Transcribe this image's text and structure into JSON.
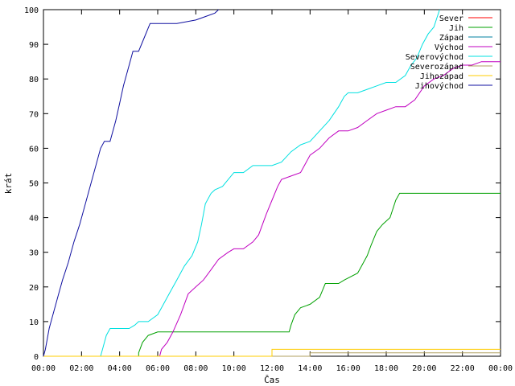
{
  "chart_data": {
    "type": "line",
    "xlabel": "Čas",
    "ylabel": "krát",
    "xlim": [
      0,
      24
    ],
    "ylim": [
      0,
      100
    ],
    "grid": false,
    "legend_position": "top-right",
    "x_ticks": [
      "00:00",
      "02:00",
      "04:00",
      "06:00",
      "08:00",
      "10:00",
      "12:00",
      "14:00",
      "16:00",
      "18:00",
      "20:00",
      "22:00",
      "00:00"
    ],
    "y_ticks": [
      "0",
      "10",
      "20",
      "30",
      "40",
      "50",
      "60",
      "70",
      "80",
      "90",
      "100"
    ],
    "series": [
      {
        "name": "Sever",
        "color": "#ff0000",
        "points": []
      },
      {
        "name": "Jih",
        "color": "#00a000",
        "points": [
          [
            0,
            0
          ],
          [
            5.0,
            0
          ],
          [
            5.0,
            1
          ],
          [
            5.2,
            4
          ],
          [
            5.5,
            6
          ],
          [
            6.0,
            7
          ],
          [
            12.0,
            7
          ],
          [
            12.9,
            7
          ],
          [
            13.0,
            9
          ],
          [
            13.2,
            12
          ],
          [
            13.5,
            14
          ],
          [
            14.0,
            15
          ],
          [
            14.5,
            17
          ],
          [
            14.8,
            21
          ],
          [
            15.5,
            21
          ],
          [
            15.8,
            22
          ],
          [
            16.5,
            24
          ],
          [
            16.8,
            27
          ],
          [
            17.0,
            29
          ],
          [
            17.2,
            32
          ],
          [
            17.5,
            36
          ],
          [
            17.8,
            38
          ],
          [
            18.2,
            40
          ],
          [
            18.5,
            45
          ],
          [
            18.7,
            47
          ],
          [
            24.0,
            47
          ]
        ]
      },
      {
        "name": "Západ",
        "color": "#0080a0",
        "points": []
      },
      {
        "name": "Východ",
        "color": "#c000c0",
        "points": [
          [
            0,
            0
          ],
          [
            6.1,
            0
          ],
          [
            6.2,
            2
          ],
          [
            6.5,
            4
          ],
          [
            6.8,
            7
          ],
          [
            7.2,
            12
          ],
          [
            7.6,
            18
          ],
          [
            8.0,
            20
          ],
          [
            8.4,
            22
          ],
          [
            8.8,
            25
          ],
          [
            9.2,
            28
          ],
          [
            9.7,
            30
          ],
          [
            10.0,
            31
          ],
          [
            10.5,
            31
          ],
          [
            11.0,
            33
          ],
          [
            11.3,
            35
          ],
          [
            11.7,
            41
          ],
          [
            12.0,
            45
          ],
          [
            12.3,
            49
          ],
          [
            12.5,
            51
          ],
          [
            13.0,
            52
          ],
          [
            13.5,
            53
          ],
          [
            14.0,
            58
          ],
          [
            14.5,
            60
          ],
          [
            15.0,
            63
          ],
          [
            15.5,
            65
          ],
          [
            16.0,
            65
          ],
          [
            16.5,
            66
          ],
          [
            17.0,
            68
          ],
          [
            17.5,
            70
          ],
          [
            18.0,
            71
          ],
          [
            18.5,
            72
          ],
          [
            19.0,
            72
          ],
          [
            19.5,
            74
          ],
          [
            20.0,
            78
          ],
          [
            20.5,
            80
          ],
          [
            21.0,
            81
          ],
          [
            21.5,
            83
          ],
          [
            22.0,
            84
          ],
          [
            22.5,
            84
          ],
          [
            23.0,
            85
          ],
          [
            24.0,
            85
          ]
        ]
      },
      {
        "name": "Severovýchod",
        "color": "#00e0e0",
        "points": [
          [
            0,
            0
          ],
          [
            3.0,
            0
          ],
          [
            3.1,
            2
          ],
          [
            3.3,
            6
          ],
          [
            3.5,
            8
          ],
          [
            4.5,
            8
          ],
          [
            4.8,
            9
          ],
          [
            5.0,
            10
          ],
          [
            5.5,
            10
          ],
          [
            6.0,
            12
          ],
          [
            6.3,
            15
          ],
          [
            6.6,
            18
          ],
          [
            7.0,
            22
          ],
          [
            7.4,
            26
          ],
          [
            7.8,
            29
          ],
          [
            8.1,
            33
          ],
          [
            8.3,
            38
          ],
          [
            8.5,
            44
          ],
          [
            8.8,
            47
          ],
          [
            9.0,
            48
          ],
          [
            9.4,
            49
          ],
          [
            9.7,
            51
          ],
          [
            10.0,
            53
          ],
          [
            10.5,
            53
          ],
          [
            11.0,
            55
          ],
          [
            11.5,
            55
          ],
          [
            12.0,
            55
          ],
          [
            12.5,
            56
          ],
          [
            13.0,
            59
          ],
          [
            13.5,
            61
          ],
          [
            14.0,
            62
          ],
          [
            14.5,
            65
          ],
          [
            15.0,
            68
          ],
          [
            15.5,
            72
          ],
          [
            15.8,
            75
          ],
          [
            16.0,
            76
          ],
          [
            16.5,
            76
          ],
          [
            17.0,
            77
          ],
          [
            17.5,
            78
          ],
          [
            18.0,
            79
          ],
          [
            18.5,
            79
          ],
          [
            19.0,
            81
          ],
          [
            19.3,
            84
          ],
          [
            19.6,
            86
          ],
          [
            19.9,
            90
          ],
          [
            20.2,
            93
          ],
          [
            20.5,
            95
          ],
          [
            20.8,
            100
          ]
        ]
      },
      {
        "name": "Severozápad",
        "color": "#b0a060",
        "points": [
          [
            0,
            0
          ],
          [
            14.0,
            0
          ],
          [
            14.0,
            1
          ],
          [
            24.0,
            1
          ]
        ]
      },
      {
        "name": "Jihozápad",
        "color": "#ffcc00",
        "points": [
          [
            0,
            0
          ],
          [
            12.0,
            0
          ],
          [
            12.0,
            2
          ],
          [
            24.0,
            2
          ]
        ]
      },
      {
        "name": "Jihovýchod",
        "color": "#1010a0",
        "points": [
          [
            0,
            0
          ],
          [
            0.1,
            2
          ],
          [
            0.3,
            8
          ],
          [
            0.5,
            12
          ],
          [
            0.8,
            18
          ],
          [
            1.0,
            22
          ],
          [
            1.3,
            27
          ],
          [
            1.6,
            33
          ],
          [
            1.9,
            38
          ],
          [
            2.2,
            44
          ],
          [
            2.5,
            50
          ],
          [
            2.8,
            56
          ],
          [
            3.0,
            60
          ],
          [
            3.2,
            62
          ],
          [
            3.5,
            62
          ],
          [
            3.8,
            68
          ],
          [
            4.0,
            73
          ],
          [
            4.2,
            78
          ],
          [
            4.5,
            84
          ],
          [
            4.7,
            88
          ],
          [
            5.0,
            88
          ],
          [
            5.3,
            92
          ],
          [
            5.6,
            96
          ],
          [
            6.0,
            96
          ],
          [
            7.0,
            96
          ],
          [
            8.0,
            97
          ],
          [
            8.5,
            98
          ],
          [
            9.0,
            99
          ],
          [
            9.2,
            100
          ]
        ]
      }
    ]
  }
}
